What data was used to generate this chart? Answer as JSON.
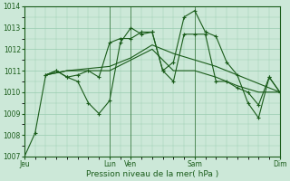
{
  "xlabel": "Pression niveau de la mer( hPa )",
  "ylim": [
    1007,
    1014
  ],
  "yticks": [
    1007,
    1008,
    1009,
    1010,
    1011,
    1012,
    1013,
    1014
  ],
  "day_labels": [
    "Jeu",
    "Lun",
    "Ven",
    "Sam",
    "Dim"
  ],
  "day_positions": [
    0,
    8,
    10,
    16,
    24
  ],
  "background_color": "#cce8d8",
  "grid_color": "#99ccb0",
  "line_color": "#1a5c1a",
  "line1_x": [
    0,
    1,
    2,
    3,
    4,
    5,
    6,
    7,
    8,
    9,
    10,
    11,
    12,
    13,
    14,
    15,
    16,
    17,
    18,
    19,
    20,
    21,
    22,
    23,
    24
  ],
  "line1_y": [
    1007.0,
    1008.1,
    1010.8,
    1011.0,
    1010.7,
    1010.5,
    1009.5,
    1009.0,
    1009.6,
    1012.3,
    1013.0,
    1012.7,
    1012.8,
    1011.0,
    1011.4,
    1013.5,
    1013.8,
    1012.8,
    1012.6,
    1011.4,
    1010.8,
    1009.5,
    1008.8,
    1010.7,
    1010.0
  ],
  "line2_x": [
    2,
    3,
    4,
    5,
    6,
    7,
    8,
    9,
    10,
    11,
    12,
    13,
    14,
    15,
    16,
    17,
    18,
    19,
    20,
    21,
    22,
    23,
    24
  ],
  "line2_y": [
    1010.8,
    1011.0,
    1010.7,
    1010.8,
    1011.0,
    1010.7,
    1012.3,
    1012.5,
    1012.5,
    1012.8,
    1012.8,
    1011.0,
    1010.5,
    1012.7,
    1012.7,
    1012.7,
    1010.5,
    1010.5,
    1010.2,
    1010.0,
    1009.4,
    1010.7,
    1010.0
  ],
  "line3_x": [
    2,
    4,
    6,
    8,
    10,
    12,
    14,
    16,
    18,
    20,
    22,
    24
  ],
  "line3_y": [
    1010.8,
    1011.0,
    1011.0,
    1011.0,
    1011.5,
    1012.0,
    1011.0,
    1011.0,
    1010.7,
    1010.3,
    1010.0,
    1010.0
  ],
  "line4_x": [
    2,
    4,
    6,
    8,
    10,
    12,
    14,
    16,
    18,
    20,
    22,
    24
  ],
  "line4_y": [
    1010.8,
    1011.0,
    1011.1,
    1011.2,
    1011.6,
    1012.2,
    1011.8,
    1011.5,
    1011.2,
    1010.8,
    1010.4,
    1010.0
  ]
}
